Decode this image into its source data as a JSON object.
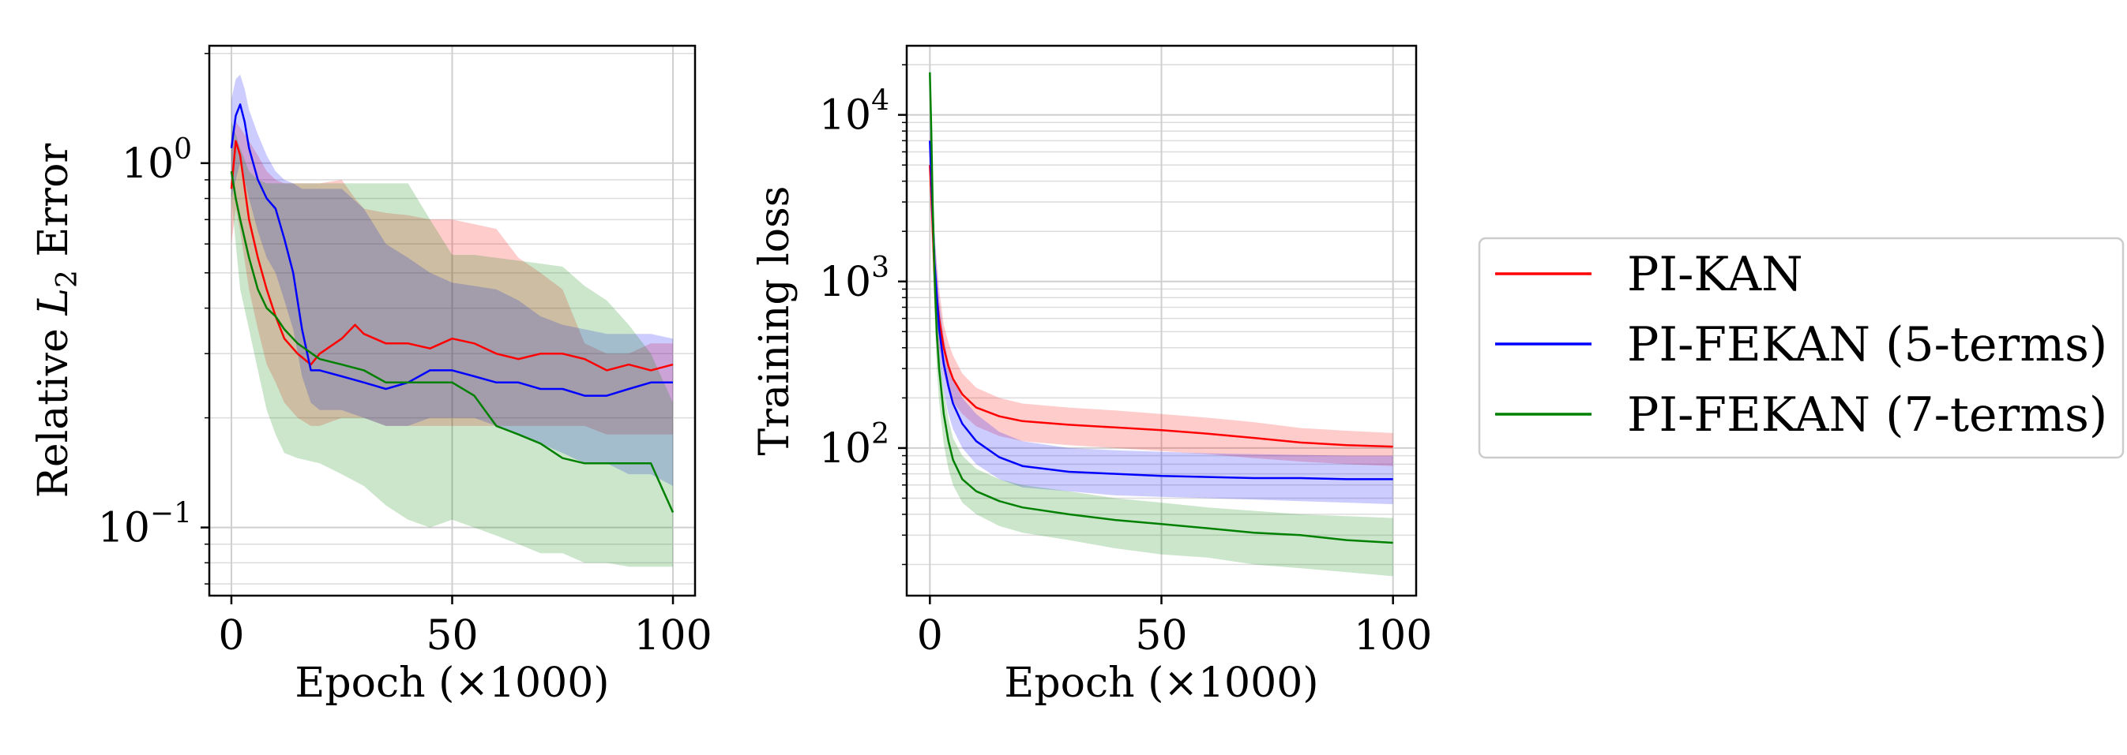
{
  "chart_data": [
    {
      "type": "line",
      "xlabel": "Epoch (×1000)",
      "ylabel": "Relative L₂ Error",
      "ylabel_parts": {
        "pre": "Relative ",
        "sym": "L",
        "sub": "2",
        "post": " Error"
      },
      "xscale": "linear",
      "yscale": "log",
      "xlim": [
        -5,
        105
      ],
      "ylim": [
        0.065,
        2.1
      ],
      "xticks": [
        0,
        50,
        100
      ],
      "xtick_labels": [
        "0",
        "50",
        "100"
      ],
      "yticks": [
        0.1,
        1
      ],
      "ytick_labels": [
        {
          "base": "10",
          "exp": "−1"
        },
        {
          "base": "10",
          "exp": "0"
        }
      ],
      "grid": true,
      "series": [
        {
          "name": "PI-KAN",
          "color": "#ff0000",
          "band_color": "#ff0000",
          "x": [
            0,
            1,
            2,
            4,
            6,
            8,
            10,
            12,
            15,
            18,
            20,
            25,
            28,
            30,
            35,
            40,
            45,
            50,
            55,
            60,
            65,
            70,
            75,
            80,
            85,
            90,
            95,
            100
          ],
          "y": [
            0.85,
            1.15,
            1.05,
            0.7,
            0.55,
            0.45,
            0.38,
            0.33,
            0.3,
            0.28,
            0.3,
            0.33,
            0.36,
            0.34,
            0.32,
            0.32,
            0.31,
            0.33,
            0.32,
            0.3,
            0.29,
            0.3,
            0.3,
            0.29,
            0.27,
            0.28,
            0.27,
            0.28
          ],
          "lower": [
            0.6,
            0.75,
            0.65,
            0.45,
            0.35,
            0.28,
            0.25,
            0.22,
            0.2,
            0.19,
            0.19,
            0.2,
            0.2,
            0.2,
            0.19,
            0.19,
            0.19,
            0.19,
            0.19,
            0.19,
            0.19,
            0.19,
            0.19,
            0.19,
            0.18,
            0.18,
            0.18,
            0.18
          ],
          "upper": [
            1.2,
            1.3,
            1.25,
            1.15,
            1.05,
            0.95,
            0.9,
            0.88,
            0.88,
            0.88,
            0.88,
            0.9,
            0.8,
            0.75,
            0.73,
            0.72,
            0.7,
            0.7,
            0.68,
            0.66,
            0.55,
            0.5,
            0.45,
            0.32,
            0.3,
            0.3,
            0.32,
            0.32
          ]
        },
        {
          "name": "PI-FEKAN (5-terms)",
          "color": "#0000ff",
          "band_color": "#0000ff",
          "x": [
            0,
            1,
            2,
            3,
            4,
            6,
            8,
            10,
            12,
            14,
            16,
            18,
            20,
            25,
            30,
            35,
            40,
            45,
            50,
            55,
            60,
            65,
            70,
            75,
            80,
            85,
            90,
            95,
            100
          ],
          "y": [
            1.1,
            1.35,
            1.45,
            1.3,
            1.1,
            0.9,
            0.8,
            0.75,
            0.62,
            0.5,
            0.35,
            0.27,
            0.27,
            0.26,
            0.25,
            0.24,
            0.25,
            0.27,
            0.27,
            0.26,
            0.25,
            0.25,
            0.24,
            0.24,
            0.23,
            0.23,
            0.24,
            0.25,
            0.25
          ],
          "lower": [
            0.8,
            0.9,
            1.0,
            0.9,
            0.8,
            0.65,
            0.55,
            0.5,
            0.42,
            0.35,
            0.26,
            0.22,
            0.21,
            0.21,
            0.2,
            0.19,
            0.19,
            0.2,
            0.2,
            0.2,
            0.19,
            0.18,
            0.17,
            0.16,
            0.15,
            0.15,
            0.14,
            0.14,
            0.13
          ],
          "upper": [
            1.5,
            1.7,
            1.75,
            1.6,
            1.4,
            1.2,
            1.05,
            0.95,
            0.9,
            0.88,
            0.85,
            0.85,
            0.85,
            0.85,
            0.75,
            0.6,
            0.55,
            0.5,
            0.47,
            0.46,
            0.45,
            0.42,
            0.38,
            0.36,
            0.35,
            0.34,
            0.34,
            0.34,
            0.33
          ]
        },
        {
          "name": "PI-FEKAN (7-terms)",
          "color": "#008000",
          "band_color": "#008000",
          "x": [
            0,
            1,
            2,
            4,
            6,
            8,
            10,
            12,
            15,
            20,
            25,
            30,
            35,
            40,
            45,
            50,
            55,
            60,
            65,
            70,
            75,
            80,
            85,
            90,
            95,
            100
          ],
          "y": [
            0.95,
            0.8,
            0.7,
            0.55,
            0.45,
            0.4,
            0.38,
            0.35,
            0.32,
            0.29,
            0.28,
            0.27,
            0.25,
            0.25,
            0.25,
            0.25,
            0.23,
            0.19,
            0.18,
            0.17,
            0.155,
            0.15,
            0.15,
            0.15,
            0.15,
            0.11
          ],
          "lower": [
            0.8,
            0.6,
            0.45,
            0.35,
            0.27,
            0.21,
            0.18,
            0.16,
            0.155,
            0.15,
            0.14,
            0.13,
            0.115,
            0.105,
            0.1,
            0.105,
            0.1,
            0.095,
            0.09,
            0.085,
            0.085,
            0.08,
            0.08,
            0.078,
            0.078,
            0.078
          ],
          "upper": [
            1.3,
            1.2,
            1.1,
            0.95,
            0.9,
            0.88,
            0.88,
            0.88,
            0.88,
            0.88,
            0.88,
            0.88,
            0.88,
            0.88,
            0.7,
            0.56,
            0.56,
            0.55,
            0.54,
            0.53,
            0.52,
            0.46,
            0.42,
            0.36,
            0.3,
            0.22
          ]
        }
      ]
    },
    {
      "type": "line",
      "xlabel": "Epoch (×1000)",
      "ylabel": "Training loss",
      "xscale": "linear",
      "yscale": "log",
      "xlim": [
        -5,
        105
      ],
      "ylim": [
        13,
        26000
      ],
      "xticks": [
        0,
        50,
        100
      ],
      "xtick_labels": [
        "0",
        "50",
        "100"
      ],
      "yticks": [
        100,
        1000,
        10000
      ],
      "ytick_labels": [
        {
          "base": "10",
          "exp": "2"
        },
        {
          "base": "10",
          "exp": "3"
        },
        {
          "base": "10",
          "exp": "4"
        }
      ],
      "grid": true,
      "series": [
        {
          "name": "PI-KAN",
          "color": "#ff0000",
          "band_color": "#ff0000",
          "x": [
            0,
            0.5,
            1,
            2,
            3,
            4,
            5,
            7,
            10,
            15,
            20,
            30,
            40,
            50,
            60,
            70,
            80,
            90,
            100
          ],
          "y": [
            5000,
            2500,
            1100,
            600,
            400,
            310,
            260,
            210,
            175,
            155,
            145,
            138,
            133,
            128,
            122,
            115,
            108,
            104,
            102
          ],
          "lower": [
            3000,
            1500,
            700,
            400,
            280,
            220,
            190,
            160,
            135,
            118,
            110,
            104,
            100,
            96,
            92,
            87,
            83,
            80,
            78
          ],
          "upper": [
            8000,
            4000,
            1800,
            900,
            550,
            430,
            360,
            280,
            230,
            200,
            185,
            175,
            168,
            160,
            152,
            143,
            132,
            127,
            123
          ]
        },
        {
          "name": "PI-FEKAN (5-terms)",
          "color": "#0000ff",
          "band_color": "#0000ff",
          "x": [
            0,
            0.5,
            1,
            2,
            3,
            4,
            5,
            7,
            10,
            15,
            20,
            30,
            40,
            50,
            60,
            70,
            80,
            90,
            100
          ],
          "y": [
            7000,
            3000,
            1300,
            520,
            320,
            235,
            185,
            140,
            110,
            88,
            78,
            72,
            70,
            68,
            67,
            66,
            66,
            65,
            65
          ],
          "lower": [
            4000,
            1800,
            800,
            350,
            220,
            160,
            130,
            100,
            80,
            65,
            58,
            55,
            52,
            51,
            50,
            49,
            48,
            47,
            46
          ],
          "upper": [
            10000,
            4500,
            2000,
            780,
            460,
            330,
            265,
            200,
            160,
            125,
            110,
            100,
            97,
            95,
            93,
            92,
            91,
            90,
            90
          ]
        },
        {
          "name": "PI-FEKAN (7-terms)",
          "color": "#008000",
          "band_color": "#008000",
          "x": [
            0,
            0.3,
            0.6,
            1,
            1.5,
            2,
            3,
            4,
            5,
            7,
            10,
            15,
            20,
            30,
            40,
            50,
            60,
            70,
            80,
            90,
            100
          ],
          "y": [
            18000,
            8000,
            3000,
            1100,
            480,
            300,
            160,
            110,
            85,
            65,
            55,
            48,
            44,
            40,
            37,
            35,
            33,
            31,
            30,
            28,
            27
          ],
          "lower": [
            12000,
            5000,
            1800,
            650,
            300,
            190,
            105,
            75,
            60,
            47,
            40,
            34,
            31,
            28,
            25,
            23,
            22,
            20,
            19,
            18,
            17
          ],
          "upper": [
            20000,
            10000,
            4000,
            1500,
            650,
            400,
            220,
            150,
            115,
            90,
            75,
            65,
            60,
            55,
            50,
            47,
            44,
            42,
            40,
            39,
            38
          ]
        }
      ]
    }
  ],
  "legend": {
    "position": "right",
    "entries": [
      {
        "label": "PI-KAN",
        "color": "#ff0000"
      },
      {
        "label": "PI-FEKAN (5-terms)",
        "color": "#0000ff"
      },
      {
        "label": "PI-FEKAN (7-terms)",
        "color": "#008000"
      }
    ]
  }
}
